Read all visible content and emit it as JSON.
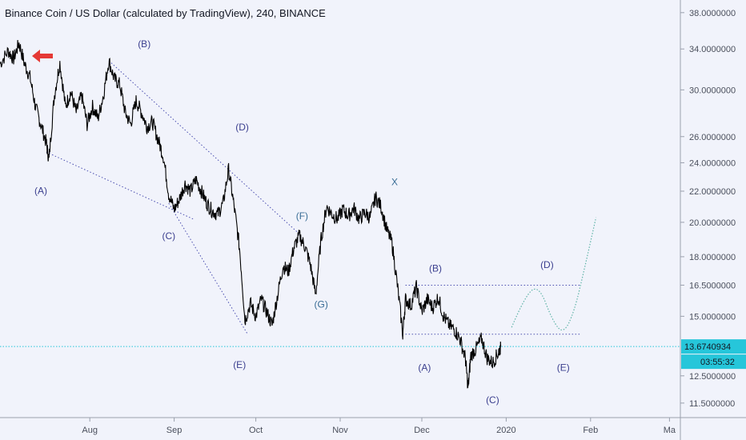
{
  "header": {
    "title": "Binance Coin / US Dollar (calculated by TradingView), 240, BINANCE"
  },
  "colors": {
    "background": "#f1f3fb",
    "price_line": "#000000",
    "wave_label": "#3b3f8f",
    "wave_label_alt": "#3a6d96",
    "trendline": "#4b4fb0",
    "projection": "#5fb3a7",
    "current_price": "#26c6da",
    "arrow": "#e53935"
  },
  "chart_data": {
    "type": "line",
    "symbol": "BNB/USD",
    "interval": "240",
    "exchange": "BINANCE",
    "y_scale": "log",
    "ylim": [
      11.0,
      39.5
    ],
    "y_ticks": [
      38,
      34,
      30,
      26,
      24,
      22,
      20,
      18,
      16.5,
      15,
      12.5,
      11.5
    ],
    "y_tick_labels": [
      "38.0000000",
      "34.0000000",
      "30.0000000",
      "26.0000000",
      "24.0000000",
      "22.0000000",
      "20.0000000",
      "18.0000000",
      "16.5000000",
      "15.0000000",
      "12.5000000",
      "11.5000000"
    ],
    "x_range": [
      "2019-06-29",
      "2020-03-05"
    ],
    "x_tick_labels": [
      {
        "date": "2019-08-01",
        "label": "Aug"
      },
      {
        "date": "2019-09-01",
        "label": "Sep"
      },
      {
        "date": "2019-10-01",
        "label": "Oct"
      },
      {
        "date": "2019-11-01",
        "label": "Nov"
      },
      {
        "date": "2019-12-01",
        "label": "Dec"
      },
      {
        "date": "2020-01-01",
        "label": "2020"
      },
      {
        "date": "2020-02-01",
        "label": "Feb"
      },
      {
        "date": "2020-03-01",
        "label": "Ma"
      }
    ],
    "price_series": {
      "name": "",
      "points": [
        [
          "2019-06-29",
          32.5
        ],
        [
          "2019-07-02",
          33.8
        ],
        [
          "2019-07-04",
          33.0
        ],
        [
          "2019-07-06",
          34.6
        ],
        [
          "2019-07-08",
          32.5
        ],
        [
          "2019-07-10",
          31.2
        ],
        [
          "2019-07-12",
          28.5
        ],
        [
          "2019-07-14",
          27.0
        ],
        [
          "2019-07-16",
          25.5
        ],
        [
          "2019-07-17",
          24.2
        ],
        [
          "2019-07-19",
          29.5
        ],
        [
          "2019-07-21",
          32.6
        ],
        [
          "2019-07-23",
          28.5
        ],
        [
          "2019-07-25",
          29.8
        ],
        [
          "2019-07-27",
          28.0
        ],
        [
          "2019-07-29",
          29.5
        ],
        [
          "2019-07-31",
          27.0
        ],
        [
          "2019-08-02",
          28.5
        ],
        [
          "2019-08-04",
          27.5
        ],
        [
          "2019-08-06",
          29.5
        ],
        [
          "2019-08-08",
          32.8
        ],
        [
          "2019-08-10",
          31.0
        ],
        [
          "2019-08-12",
          30.5
        ],
        [
          "2019-08-14",
          28.0
        ],
        [
          "2019-08-16",
          27.0
        ],
        [
          "2019-08-18",
          29.0
        ],
        [
          "2019-08-20",
          28.0
        ],
        [
          "2019-08-22",
          26.8
        ],
        [
          "2019-08-24",
          27.2
        ],
        [
          "2019-08-26",
          25.8
        ],
        [
          "2019-08-28",
          24.5
        ],
        [
          "2019-08-30",
          21.8
        ],
        [
          "2019-09-01",
          20.8
        ],
        [
          "2019-09-03",
          21.5
        ],
        [
          "2019-09-05",
          22.5
        ],
        [
          "2019-09-07",
          22.0
        ],
        [
          "2019-09-09",
          22.8
        ],
        [
          "2019-09-11",
          22.0
        ],
        [
          "2019-09-13",
          21.2
        ],
        [
          "2019-09-15",
          20.7
        ],
        [
          "2019-09-17",
          20.5
        ],
        [
          "2019-09-19",
          21.2
        ],
        [
          "2019-09-21",
          23.5
        ],
        [
          "2019-09-23",
          21.0
        ],
        [
          "2019-09-25",
          18.5
        ],
        [
          "2019-09-27",
          14.8
        ],
        [
          "2019-09-29",
          15.6
        ],
        [
          "2019-10-01",
          15.0
        ],
        [
          "2019-10-03",
          15.8
        ],
        [
          "2019-10-05",
          15.2
        ],
        [
          "2019-10-07",
          14.6
        ],
        [
          "2019-10-09",
          16.0
        ],
        [
          "2019-10-11",
          17.5
        ],
        [
          "2019-10-13",
          17.2
        ],
        [
          "2019-10-15",
          18.5
        ],
        [
          "2019-10-17",
          19.2
        ],
        [
          "2019-10-19",
          18.6
        ],
        [
          "2019-10-21",
          17.6
        ],
        [
          "2019-10-23",
          16.0
        ],
        [
          "2019-10-25",
          19.0
        ],
        [
          "2019-10-27",
          21.0
        ],
        [
          "2019-10-29",
          20.5
        ],
        [
          "2019-10-31",
          20.2
        ],
        [
          "2019-11-02",
          20.8
        ],
        [
          "2019-11-04",
          20.4
        ],
        [
          "2019-11-06",
          20.9
        ],
        [
          "2019-11-08",
          20.2
        ],
        [
          "2019-11-10",
          20.6
        ],
        [
          "2019-11-12",
          20.3
        ],
        [
          "2019-11-14",
          21.6
        ],
        [
          "2019-11-16",
          21.0
        ],
        [
          "2019-11-18",
          19.6
        ],
        [
          "2019-11-20",
          18.8
        ],
        [
          "2019-11-22",
          16.5
        ],
        [
          "2019-11-24",
          14.2
        ],
        [
          "2019-11-25",
          15.8
        ],
        [
          "2019-11-27",
          15.5
        ],
        [
          "2019-11-29",
          16.4
        ],
        [
          "2019-12-01",
          15.2
        ],
        [
          "2019-12-03",
          15.8
        ],
        [
          "2019-12-05",
          15.4
        ],
        [
          "2019-12-07",
          15.9
        ],
        [
          "2019-12-09",
          15.0
        ],
        [
          "2019-12-11",
          14.6
        ],
        [
          "2019-12-13",
          14.4
        ],
        [
          "2019-12-15",
          14.0
        ],
        [
          "2019-12-17",
          13.2
        ],
        [
          "2019-12-18",
          12.0
        ],
        [
          "2019-12-19",
          13.3
        ],
        [
          "2019-12-21",
          13.6
        ],
        [
          "2019-12-23",
          14.0
        ],
        [
          "2019-12-25",
          13.2
        ],
        [
          "2019-12-27",
          13.0
        ],
        [
          "2019-12-29",
          13.4
        ],
        [
          "2019-12-30",
          13.67
        ]
      ]
    },
    "current_price": {
      "value": 13.6740934,
      "label": "13.6740934",
      "countdown": "03:55:32"
    },
    "wave_labels": [
      {
        "text": "(A)",
        "date": "2019-07-14",
        "price": 21.8,
        "style": "primary"
      },
      {
        "text": "(B)",
        "date": "2019-08-21",
        "price": 34.2,
        "style": "primary"
      },
      {
        "text": "(C)",
        "date": "2019-08-30",
        "price": 19.0,
        "style": "primary"
      },
      {
        "text": "(D)",
        "date": "2019-09-26",
        "price": 26.5,
        "style": "primary"
      },
      {
        "text": "(E)",
        "date": "2019-09-25",
        "price": 12.8,
        "style": "primary"
      },
      {
        "text": "(F)",
        "date": "2019-10-18",
        "price": 20.2,
        "style": "alt"
      },
      {
        "text": "(G)",
        "date": "2019-10-25",
        "price": 15.4,
        "style": "alt"
      },
      {
        "text": "X",
        "date": "2019-11-21",
        "price": 22.4,
        "style": "alt"
      },
      {
        "text": "(B)",
        "date": "2019-12-06",
        "price": 17.2,
        "style": "primary"
      },
      {
        "text": "(A)",
        "date": "2019-12-02",
        "price": 12.7,
        "style": "primary"
      },
      {
        "text": "(C)",
        "date": "2019-12-27",
        "price": 11.5,
        "style": "primary"
      },
      {
        "text": "(D)",
        "date": "2020-01-16",
        "price": 17.4,
        "style": "primary"
      },
      {
        "text": "(E)",
        "date": "2020-01-22",
        "price": 12.7,
        "style": "primary"
      }
    ],
    "trendlines": [
      {
        "from": [
          "2019-07-16",
          24.8
        ],
        "to": [
          "2019-09-08",
          20.2
        ]
      },
      {
        "from": [
          "2019-08-08",
          32.8
        ],
        "to": [
          "2019-10-17",
          19.3
        ]
      },
      {
        "from": [
          "2019-08-30",
          21.2
        ],
        "to": [
          "2019-09-28",
          14.2
        ]
      },
      {
        "from": [
          "2019-11-25",
          16.5
        ],
        "to": [
          "2020-01-28",
          16.5
        ]
      },
      {
        "from": [
          "2019-11-25",
          14.2
        ],
        "to": [
          "2020-01-28",
          14.2
        ]
      }
    ],
    "projection_path": [
      [
        "2020-01-03",
        14.5
      ],
      [
        "2020-01-08",
        16.0
      ],
      [
        "2020-01-13",
        16.5
      ],
      [
        "2020-01-18",
        14.8
      ],
      [
        "2020-01-22",
        14.2
      ],
      [
        "2020-01-26",
        15.2
      ],
      [
        "2020-01-30",
        17.5
      ],
      [
        "2020-02-03",
        20.3
      ]
    ],
    "grid": false,
    "legend": "none"
  }
}
